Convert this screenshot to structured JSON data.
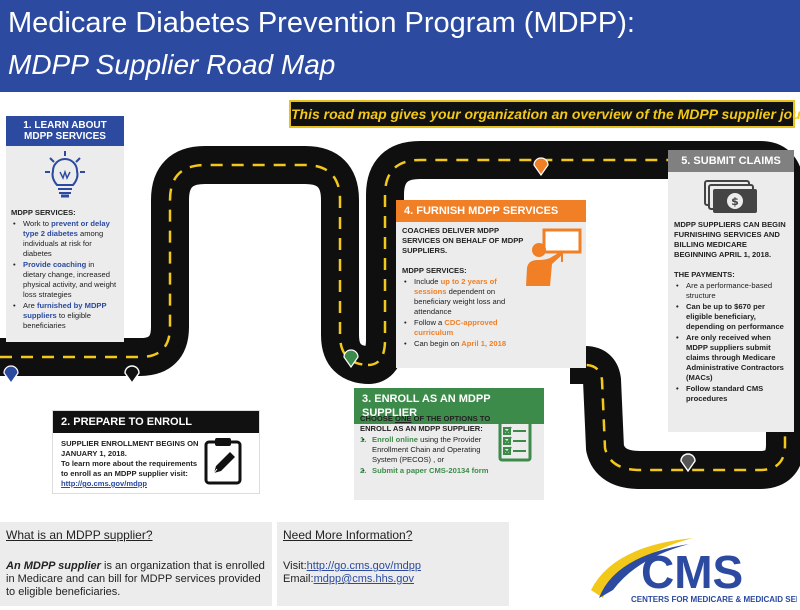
{
  "header": {
    "title": "Medicare Diabetes Prevention Program (MDPP):",
    "subtitle": "MDPP Supplier Road Map"
  },
  "tagline": "This road map gives your organization an overview of the MDPP supplier journey.",
  "colors": {
    "header_blue": "#2b4aa0",
    "road": "#0f0f0f",
    "road_dash": "#f2c81a",
    "orange": "#f07f26",
    "green": "#3d8b4a",
    "gray": "#808080"
  },
  "step1": {
    "title": "1. LEARN ABOUT MDPP SERVICES",
    "icon": "lightbulb-icon",
    "heading": "MDPP SERVICES:",
    "bullets": [
      {
        "pre": "Work to ",
        "hl": "prevent or delay type 2 diabetes",
        "post": " among individuals at risk for diabetes"
      },
      {
        "pre": "",
        "hl": "Provide coaching",
        "post": " in dietary change, increased physical activity, and weight loss strategies"
      },
      {
        "pre": "Are ",
        "hl": "furnished by MDPP suppliers",
        "post": " to eligible beneficiaries"
      }
    ]
  },
  "step2": {
    "title": "2. PREPARE TO ENROLL",
    "icon": "clipboard-pencil-icon",
    "line1": "SUPPLIER ENROLLMENT BEGINS ON JANUARY 1, 2018.",
    "line2": "To learn more about the requirements to enroll as an MDPP supplier visit:",
    "link": "http://go.cms.gov/mdpp"
  },
  "step3": {
    "title": "3. ENROLL AS AN MDPP SUPPLIER",
    "icon": "checklist-icon",
    "intro_a": "CHOOSE ",
    "intro_one": "ONE",
    "intro_b": " OF THE OPTIONS TO ENROLL AS AN MDPP SUPPLIER:",
    "options": [
      {
        "num": "1.",
        "hl": "Enroll online",
        "post": " using the Provider Enrollment Chain and Operating System (PECOS) , or"
      },
      {
        "num": "2.",
        "hl": "Submit a paper CMS-20134 form",
        "post": ""
      }
    ]
  },
  "step4": {
    "title": "4. FURNISH MDPP SERVICES",
    "icon": "coach-presenting-icon",
    "line1": "COACHES DELIVER MDPP SERVICES ON BEHALF OF MDPP SUPPLIERS.",
    "heading": "MDPP SERVICES:",
    "bullets": [
      {
        "pre": "Include ",
        "hl": "up to 2 years of sessions",
        "post": " dependent on beneficiary weight loss and attendance"
      },
      {
        "pre": "Follow a ",
        "hl": "CDC-approved curriculum",
        "post": ""
      },
      {
        "pre": "Can begin on ",
        "hl": "April 1, 2018",
        "post": ""
      }
    ]
  },
  "step5": {
    "title": "5. SUBMIT CLAIMS",
    "icon": "money-icon",
    "line1": "MDPP SUPPLIERS CAN BEGIN FURNISHING SERVICES AND BILLING MEDICARE BEGINNING APRIL 1, 2018.",
    "heading": "THE PAYMENTS:",
    "bullets": [
      {
        "text": "Are a performance-based structure",
        "bold": false
      },
      {
        "text": "Can be up to $670 per eligible beneficiary, depending on performance",
        "bold": true
      },
      {
        "text": "Are only received when MDPP suppliers submit claims through Medicare Administrative Contractors (MACs)",
        "bold": true
      },
      {
        "text": "Follow standard CMS procedures",
        "bold": true
      }
    ]
  },
  "what": {
    "heading": "What is an MDPP supplier?",
    "term": "An MDPP supplier",
    "body": " is an organization that is enrolled in Medicare and can bill for MDPP services provided to eligible beneficiaries."
  },
  "more": {
    "heading": "Need More Information?",
    "visit_label": "Visit:",
    "visit_link": "http://go.cms.gov/mdpp",
    "email_label": "Email:",
    "email_link": "mdpp@cms.hhs.gov"
  },
  "cms_logo": {
    "mark": "CMS",
    "tagline": "CENTERS FOR MEDICARE & MEDICAID SERVICES"
  }
}
